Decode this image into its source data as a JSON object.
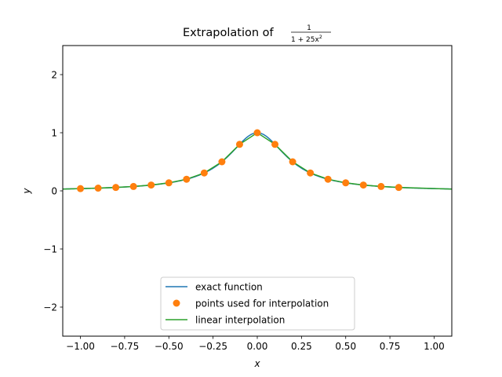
{
  "chart_data": {
    "type": "line",
    "title": "Extrapolation of",
    "title_formula": {
      "numerator": "1",
      "denominator": "1 + 25x"
    },
    "xlabel": "x",
    "ylabel": "y",
    "xlim": [
      -1.1,
      1.1
    ],
    "ylim": [
      -2.5,
      2.5
    ],
    "grid": false,
    "legend_position": "bottom-center",
    "x_ticks": [
      -1.0,
      -0.75,
      -0.5,
      -0.25,
      0.0,
      0.25,
      0.5,
      0.75,
      1.0
    ],
    "x_tick_labels": [
      "−1.00",
      "−0.75",
      "−0.50",
      "−0.25",
      "0.00",
      "0.25",
      "0.50",
      "0.75",
      "1.00"
    ],
    "y_ticks": [
      -2,
      -1,
      0,
      1,
      2
    ],
    "y_tick_labels": [
      "−2",
      "−1",
      "0",
      "1",
      "2"
    ],
    "series": [
      {
        "name": "exact function",
        "kind": "line",
        "color": "#1f77b4",
        "function": "1/(1+25x^2)",
        "x_range": [
          -1.1,
          1.1
        ]
      },
      {
        "name": "points used for interpolation",
        "kind": "scatter",
        "color": "#ff7f0e",
        "x": [
          -1.0,
          -0.9,
          -0.8,
          -0.7,
          -0.6,
          -0.5,
          -0.4,
          -0.3,
          -0.2,
          -0.1,
          0.0,
          0.1,
          0.2,
          0.3,
          0.4,
          0.5,
          0.6,
          0.7,
          0.8
        ],
        "y": [
          0.0385,
          0.0471,
          0.0588,
          0.0755,
          0.1,
          0.1379,
          0.2,
          0.3077,
          0.5,
          0.8,
          1.0,
          0.8,
          0.5,
          0.3077,
          0.2,
          0.1379,
          0.1,
          0.0755,
          0.0588
        ]
      },
      {
        "name": "linear interpolation",
        "kind": "line",
        "color": "#2ca02c",
        "x": [
          -1.1,
          -1.0,
          -0.9,
          -0.8,
          -0.7,
          -0.6,
          -0.5,
          -0.4,
          -0.3,
          -0.2,
          -0.1,
          0.0,
          0.1,
          0.2,
          0.3,
          0.4,
          0.5,
          0.6,
          0.7,
          0.8,
          1.1
        ],
        "y": [
          0.03,
          0.0385,
          0.0471,
          0.0588,
          0.0755,
          0.1,
          0.1379,
          0.2,
          0.3077,
          0.5,
          0.8,
          1.0,
          0.8,
          0.5,
          0.3077,
          0.2,
          0.1379,
          0.1,
          0.0755,
          0.0588,
          0.03
        ]
      }
    ]
  }
}
